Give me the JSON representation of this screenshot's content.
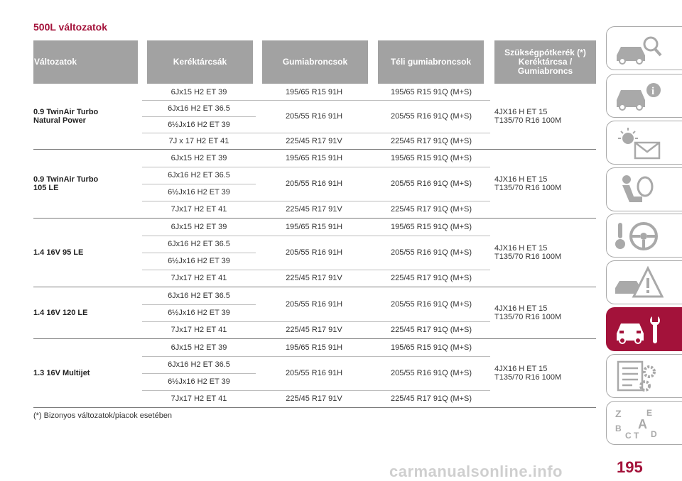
{
  "section_title": "500L változatok",
  "headers": {
    "variants": "Változatok",
    "rims": "Keréktárcsák",
    "tyres": "Gumiabroncsok",
    "winter": "Téli gumiabroncsok",
    "spare_l1": "Szükségpótkerék (*)",
    "spare_l2": "Keréktárcsa /",
    "spare_l3": "Gumiabroncs"
  },
  "groups": [
    {
      "model_l1": "0.9 TwinAir Turbo",
      "model_l2": "Natural Power",
      "spare_l1": "4JX16 H ET 15",
      "spare_l2": "T135/70 R16 100M",
      "r1_rim": "6Jx15 H2 ET 39",
      "r1_tyre": "195/65 R15 91H",
      "r1_winter": "195/65 R15 91Q (M+S)",
      "r2_rim": "6Jx16 H2 ET 36.5",
      "r3_rim": "6½Jx16 H2 ET 39",
      "r23_tyre": "205/55 R16 91H",
      "r23_winter": "205/55 R16 91Q (M+S)",
      "r4_rim": "7J x 17 H2 ET 41",
      "r4_tyre": "225/45 R17 91V",
      "r4_winter": "225/45 R17 91Q (M+S)"
    },
    {
      "model_l1": "0.9 TwinAir Turbo",
      "model_l2": "105 LE",
      "spare_l1": "4JX16 H ET 15",
      "spare_l2": "T135/70 R16 100M",
      "r1_rim": "6Jx15 H2 ET 39",
      "r1_tyre": "195/65 R15 91H",
      "r1_winter": "195/65 R15 91Q (M+S)",
      "r2_rim": "6Jx16 H2 ET 36.5",
      "r3_rim": "6½Jx16 H2 ET 39",
      "r23_tyre": "205/55 R16 91H",
      "r23_winter": "205/55 R16 91Q (M+S)",
      "r4_rim": "7Jx17 H2 ET 41",
      "r4_tyre": "225/45 R17 91V",
      "r4_winter": "225/45 R17 91Q (M+S)"
    },
    {
      "model_l1": "1.4 16V 95 LE",
      "model_l2": "",
      "spare_l1": "4JX16 H ET 15",
      "spare_l2": "T135/70 R16 100M",
      "r1_rim": "6Jx15 H2 ET 39",
      "r1_tyre": "195/65 R15 91H",
      "r1_winter": "195/65 R15 91Q (M+S)",
      "r2_rim": "6Jx16 H2 ET 36.5",
      "r3_rim": "6½Jx16 H2 ET 39",
      "r23_tyre": "205/55 R16 91H",
      "r23_winter": "205/55 R16 91Q (M+S)",
      "r4_rim": "7Jx17 H2 ET 41",
      "r4_tyre": "225/45 R17 91V",
      "r4_winter": "225/45 R17 91Q (M+S)"
    },
    {
      "model_l1": "1.4 16V 120 LE",
      "model_l2": "",
      "spare_l1": "4JX16 H ET 15",
      "spare_l2": "T135/70 R16 100M",
      "r1_rim": "6Jx16 H2 ET 36.5",
      "r2_rim": "6½Jx16 H2 ET 39",
      "r12_tyre": "205/55 R16 91H",
      "r12_winter": "205/55 R16 91Q (M+S)",
      "r3_rim": "7Jx17 H2 ET 41",
      "r3_tyre": "225/45 R17 91V",
      "r3_winter": "225/45 R17 91Q (M+S)"
    },
    {
      "model_l1": "1.3 16V Multijet",
      "model_l2": "",
      "spare_l1": "4JX16 H ET 15",
      "spare_l2": "T135/70 R16 100M",
      "r1_rim": "6Jx15 H2 ET 39",
      "r1_tyre": "195/65 R15 91H",
      "r1_winter": "195/65 R15 91Q (M+S)",
      "r2_rim": "6Jx16 H2 ET 36.5",
      "r3_rim": "6½Jx16 H2 ET 39",
      "r23_tyre": "205/55 R16 91H",
      "r23_winter": "205/55 R16 91Q (M+S)",
      "r4_rim": "7Jx17 H2 ET 41",
      "r4_tyre": "225/45 R17 91V",
      "r4_winter": "225/45 R17 91Q (M+S)"
    }
  ],
  "footnote": "(*) Bizonyos változatok/piacok esetében",
  "page_number": "195",
  "watermark": "carmanualsonline.info",
  "accent_color": "#a3123a",
  "side_tabs": [
    {
      "icon": "car-search-icon",
      "active": false
    },
    {
      "icon": "car-info-icon",
      "active": false
    },
    {
      "icon": "warning-light-message-icon",
      "active": false
    },
    {
      "icon": "airbag-seat-icon",
      "active": false
    },
    {
      "icon": "key-steering-wheel-icon",
      "active": false
    },
    {
      "icon": "breakdown-warning-triangle-icon",
      "active": false
    },
    {
      "icon": "car-wrench-icon",
      "active": true
    },
    {
      "icon": "checklist-gear-icon",
      "active": false
    },
    {
      "icon": "alphabetical-index-icon",
      "active": false
    }
  ]
}
